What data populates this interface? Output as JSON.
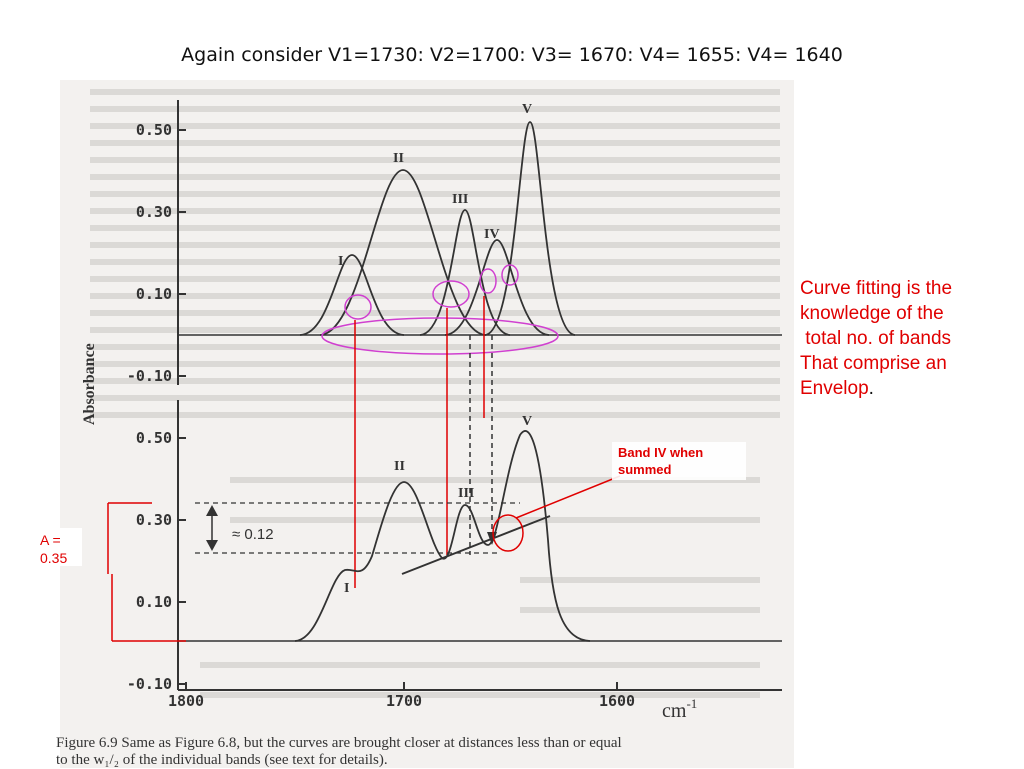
{
  "slide": {
    "title": "Again consider V1=1730: V2=1700: V3= 1670: V4= 1655: V4= 1640"
  },
  "note": {
    "lines": [
      "Curve fitting is the",
      "knowledge of the",
      " total no. of bands",
      "That comprise an",
      "Envelop"
    ],
    "tail": "."
  },
  "figure": {
    "y_axis_label": "Absorbance",
    "top_ticks": [
      "0.50",
      "0.30",
      "0.10",
      "-0.10"
    ],
    "bottom_ticks": [
      "0.50",
      "0.30",
      "0.10",
      "-0.10"
    ],
    "x_ticks": [
      "1800",
      "1700",
      "1600"
    ],
    "x_unit": "cm",
    "x_unit_exp": "-1",
    "band_labels_top": [
      "I",
      "II",
      "III",
      "IV",
      "V"
    ],
    "band_labels_bottom": [
      "I",
      "II",
      "III",
      "V"
    ],
    "delta_label": "≈  0.12",
    "A_label_1": "A =",
    "A_label_2": "0.35",
    "bandIV_label_1": "Band IV when",
    "bandIV_label_2": "summed",
    "caption_1": "Figure 6.9  Same as Figure 6.8, but the curves are brought closer at distances less than or equal",
    "caption_2": "to the w₁/₂ of the individual bands (see text for details).",
    "colors": {
      "annotation_red": "#e00000",
      "ellipse_magenta": "#d040d0",
      "paper": "#f3f1ef",
      "ink": "#333333"
    }
  }
}
